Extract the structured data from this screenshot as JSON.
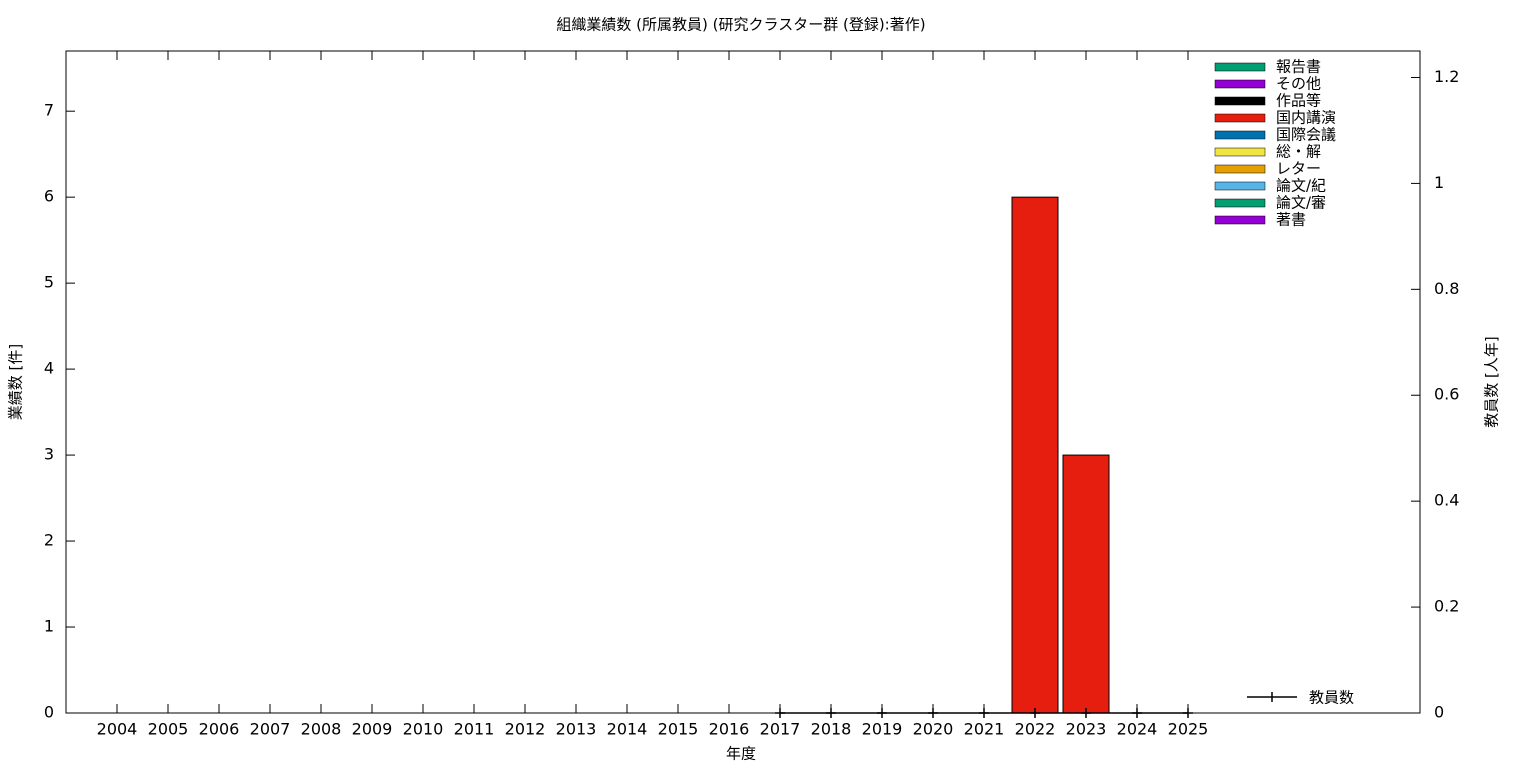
{
  "chart_data": {
    "type": "bar",
    "stacked": true,
    "title": "組織業績数 (所属教員) (研究クラスター群 (登録):著作)",
    "x_label": "年度",
    "y_label": "業績数 [件]",
    "y2_label": "教員数 [人年]",
    "categories": [
      "2004",
      "2005",
      "2006",
      "2007",
      "2008",
      "2009",
      "2010",
      "2011",
      "2012",
      "2013",
      "2014",
      "2015",
      "2016",
      "2017",
      "2018",
      "2019",
      "2020",
      "2021",
      "2022",
      "2023",
      "2024",
      "2025"
    ],
    "ylim": [
      0,
      7.7
    ],
    "yticks": [
      0,
      1,
      2,
      3,
      4,
      5,
      6,
      7
    ],
    "y2lim": [
      0,
      1.25
    ],
    "y2ticks": [
      0,
      0.2,
      0.4,
      0.6,
      0.8,
      1,
      1.2
    ],
    "series": [
      {
        "name": "報告書",
        "color": "#009e73",
        "values": [
          0,
          0,
          0,
          0,
          0,
          0,
          0,
          0,
          0,
          0,
          0,
          0,
          0,
          0,
          0,
          0,
          0,
          0,
          0,
          0,
          0,
          0
        ]
      },
      {
        "name": "その他",
        "color": "#9400d3",
        "values": [
          0,
          0,
          0,
          0,
          0,
          0,
          0,
          0,
          0,
          0,
          0,
          0,
          0,
          0,
          0,
          0,
          0,
          0,
          0,
          0,
          0,
          0
        ]
      },
      {
        "name": "作品等",
        "color": "#000000",
        "values": [
          0,
          0,
          0,
          0,
          0,
          0,
          0,
          0,
          0,
          0,
          0,
          0,
          0,
          0,
          0,
          0,
          0,
          0,
          0,
          0,
          0,
          0
        ]
      },
      {
        "name": "国内講演",
        "color": "#e51e10",
        "values": [
          0,
          0,
          0,
          0,
          0,
          0,
          0,
          0,
          0,
          0,
          0,
          0,
          0,
          0,
          0,
          0,
          0,
          0,
          6,
          3,
          0,
          0
        ]
      },
      {
        "name": "国際会議",
        "color": "#0072b2",
        "values": [
          0,
          0,
          0,
          0,
          0,
          0,
          0,
          0,
          0,
          0,
          0,
          0,
          0,
          0,
          0,
          0,
          0,
          0,
          0,
          0,
          0,
          0
        ]
      },
      {
        "name": "総・解",
        "color": "#f0e442",
        "values": [
          0,
          0,
          0,
          0,
          0,
          0,
          0,
          0,
          0,
          0,
          0,
          0,
          0,
          0,
          0,
          0,
          0,
          0,
          0,
          0,
          0,
          0
        ]
      },
      {
        "name": "レター",
        "color": "#e69f00",
        "values": [
          0,
          0,
          0,
          0,
          0,
          0,
          0,
          0,
          0,
          0,
          0,
          0,
          0,
          0,
          0,
          0,
          0,
          0,
          0,
          0,
          0,
          0
        ]
      },
      {
        "name": "論文/紀",
        "color": "#56b4e9",
        "values": [
          0,
          0,
          0,
          0,
          0,
          0,
          0,
          0,
          0,
          0,
          0,
          0,
          0,
          0,
          0,
          0,
          0,
          0,
          0,
          0,
          0,
          0
        ]
      },
      {
        "name": "論文/審",
        "color": "#009e73",
        "values": [
          0,
          0,
          0,
          0,
          0,
          0,
          0,
          0,
          0,
          0,
          0,
          0,
          0,
          0,
          0,
          0,
          0,
          0,
          0,
          0,
          0,
          0
        ]
      },
      {
        "name": "著書",
        "color": "#9400d3",
        "values": [
          0,
          0,
          0,
          0,
          0,
          0,
          0,
          0,
          0,
          0,
          0,
          0,
          0,
          0,
          0,
          0,
          0,
          0,
          0,
          0,
          0,
          0
        ]
      },
      {
        "name": "教員数",
        "type": "line",
        "axis": "y2",
        "color": "#000000",
        "values": [
          null,
          null,
          null,
          null,
          null,
          null,
          null,
          null,
          null,
          null,
          null,
          null,
          null,
          0,
          0,
          0,
          0,
          0,
          0,
          0,
          0,
          0
        ]
      }
    ]
  }
}
